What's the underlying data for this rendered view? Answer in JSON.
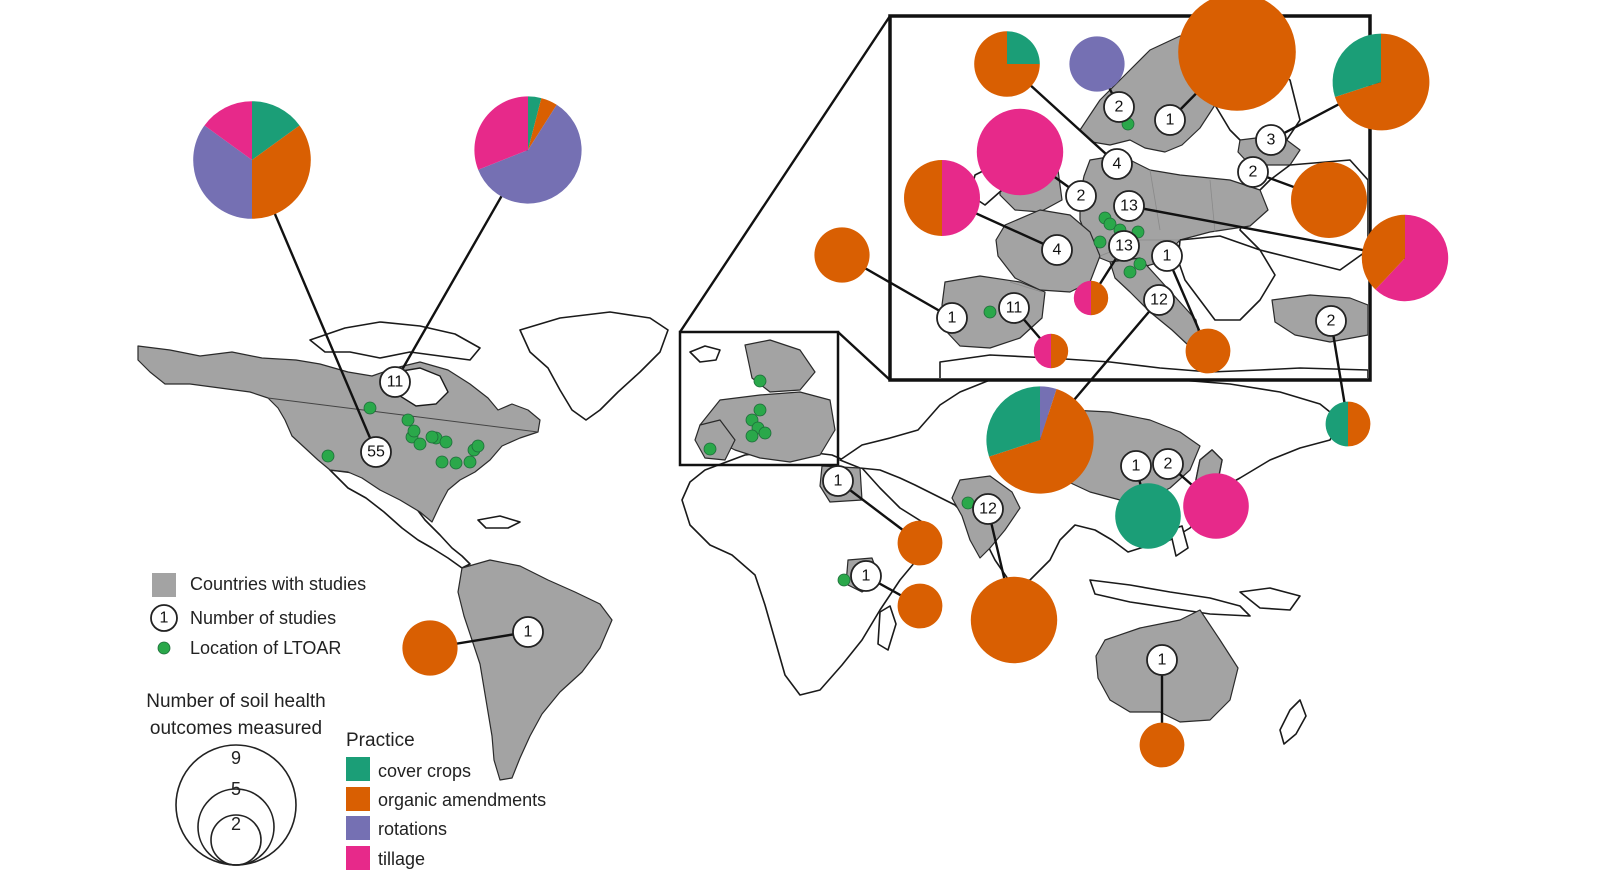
{
  "colors": {
    "cover_crops": "#1b9e77",
    "organic_amendments": "#d95f02",
    "rotations": "#7570b3",
    "tillage": "#e7298a",
    "studied_country": "#a3a3a3",
    "ltoar_dot": "#2aa84a"
  },
  "legend": {
    "countries_label": "Countries with studies",
    "studies_label": "Number of studies",
    "studies_example": "1",
    "ltoar_label": "Location of LTOAR",
    "size_title_line1": "Number of soil health",
    "size_title_line2": "outcomes measured",
    "size_values": [
      "9",
      "5",
      "2"
    ],
    "practice_title": "Practice",
    "practices": [
      "cover crops",
      "organic amendments",
      "rotations",
      "tillage"
    ]
  },
  "badges": [
    {
      "id": "canada",
      "label": "11"
    },
    {
      "id": "usa",
      "label": "55"
    },
    {
      "id": "brazil",
      "label": "1"
    },
    {
      "id": "egypt",
      "label": "1"
    },
    {
      "id": "kenya",
      "label": "1"
    },
    {
      "id": "india",
      "label": "12"
    },
    {
      "id": "china",
      "label": "1"
    },
    {
      "id": "japan",
      "label": "2"
    },
    {
      "id": "australia",
      "label": "1"
    },
    {
      "id": "norway",
      "label": "2"
    },
    {
      "id": "sweden",
      "label": "1"
    },
    {
      "id": "latvia",
      "label": "3"
    },
    {
      "id": "denmark",
      "label": "4"
    },
    {
      "id": "poland",
      "label": "2"
    },
    {
      "id": "uk",
      "label": "2"
    },
    {
      "id": "germany",
      "label": "13"
    },
    {
      "id": "france",
      "label": "4"
    },
    {
      "id": "switzerland",
      "label": "13"
    },
    {
      "id": "austria",
      "label": "1"
    },
    {
      "id": "portugal",
      "label": "1"
    },
    {
      "id": "spain",
      "label": "11"
    },
    {
      "id": "italy",
      "label": "12"
    },
    {
      "id": "turkey",
      "label": "2"
    }
  ],
  "pies": [
    {
      "id": "usa",
      "outcomes": 9,
      "shares": {
        "cover_crops": 0.15,
        "organic_amendments": 0.35,
        "rotations": 0.35,
        "tillage": 0.15
      }
    },
    {
      "id": "canada",
      "outcomes": 8,
      "shares": {
        "cover_crops": 0.04,
        "organic_amendments": 0.05,
        "rotations": 0.6,
        "tillage": 0.31
      }
    },
    {
      "id": "brazil",
      "outcomes": 3,
      "shares": {
        "organic_amendments": 1.0
      }
    },
    {
      "id": "egypt",
      "outcomes": 2,
      "shares": {
        "organic_amendments": 1.0
      }
    },
    {
      "id": "kenya",
      "outcomes": 2,
      "shares": {
        "organic_amendments": 1.0
      }
    },
    {
      "id": "india",
      "outcomes": 6,
      "shares": {
        "organic_amendments": 1.0
      }
    },
    {
      "id": "china",
      "outcomes": 4,
      "shares": {
        "cover_crops": 1.0
      }
    },
    {
      "id": "japan",
      "outcomes": 4,
      "shares": {
        "tillage": 1.0
      }
    },
    {
      "id": "australia",
      "outcomes": 2,
      "shares": {
        "organic_amendments": 1.0
      }
    },
    {
      "id": "italy",
      "outcomes": 8,
      "shares": {
        "rotations": 0.05,
        "organic_amendments": 0.65,
        "cover_crops": 0.3
      }
    },
    {
      "id": "turkey",
      "outcomes": 2,
      "shares": {
        "organic_amendments": 0.5,
        "cover_crops": 0.5
      }
    },
    {
      "id": "denmark",
      "outcomes": 4,
      "shares": {
        "cover_crops": 0.25,
        "organic_amendments": 0.75
      }
    },
    {
      "id": "norway",
      "outcomes": 3,
      "shares": {
        "rotations": 1.0
      }
    },
    {
      "id": "sweden",
      "outcomes": 9,
      "shares": {
        "organic_amendments": 1.0
      }
    },
    {
      "id": "latvia",
      "outcomes": 7,
      "shares": {
        "organic_amendments": 0.7,
        "cover_crops": 0.3
      }
    },
    {
      "id": "uk",
      "outcomes": 6,
      "shares": {
        "tillage": 1.0
      }
    },
    {
      "id": "france",
      "outcomes": 5,
      "shares": {
        "tillage": 0.5,
        "organic_amendments": 0.5
      }
    },
    {
      "id": "poland",
      "outcomes": 5,
      "shares": {
        "organic_amendments": 1.0
      }
    },
    {
      "id": "germany",
      "outcomes": 6,
      "shares": {
        "tillage": 0.62,
        "organic_amendments": 0.38
      }
    },
    {
      "id": "portugal",
      "outcomes": 3,
      "shares": {
        "organic_amendments": 1.0
      }
    },
    {
      "id": "switzerland",
      "outcomes": 1,
      "shares": {
        "organic_amendments": 0.5,
        "tillage": 0.5
      }
    },
    {
      "id": "spain",
      "outcomes": 1,
      "shares": {
        "organic_amendments": 0.5,
        "tillage": 0.5
      }
    },
    {
      "id": "austria",
      "outcomes": 2,
      "shares": {
        "organic_amendments": 1.0
      }
    }
  ]
}
